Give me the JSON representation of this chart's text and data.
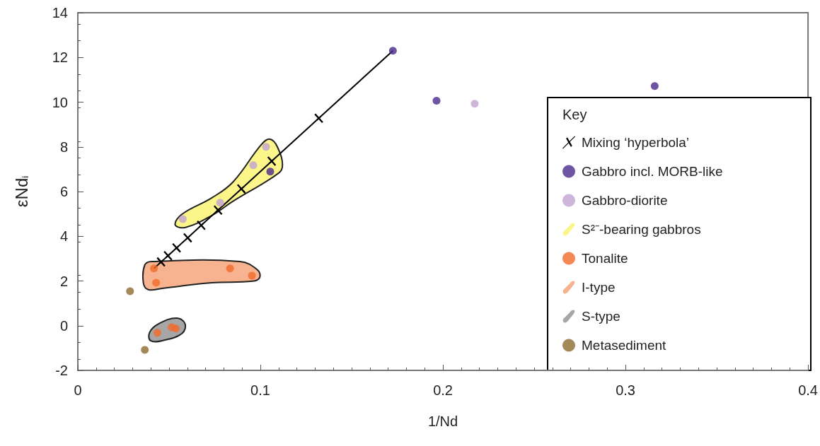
{
  "chart_data": {
    "type": "scatter",
    "xlabel": "1/Nd",
    "ylabel": "εNd$_{i}$",
    "legend_title": "Key",
    "legend": "bottom right",
    "grid": false,
    "xlim": [
      0,
      0.4
    ],
    "xticks": [
      0,
      0.1,
      0.2,
      0.3,
      0.4
    ],
    "ylim": [
      -2,
      14
    ],
    "yticks": [
      -2,
      0,
      2,
      4,
      6,
      8,
      10,
      12,
      14
    ],
    "series": [
      {
        "name": "Mixing ‘hyperbola’",
        "type": "line",
        "color": "#000000",
        "marker": "cross",
        "line_style": "solid",
        "x": [
          0.0417,
          0.0456,
          0.0494,
          0.0541,
          0.0602,
          0.0676,
          0.0768,
          0.0896,
          0.1062,
          0.132,
          0.1726
        ],
        "values": [
          2.56,
          2.85,
          3.13,
          3.48,
          3.93,
          4.49,
          5.17,
          6.12,
          7.36,
          9.28,
          12.3
        ]
      },
      {
        "name": "Gabbro incl. MORB-like",
        "color": "#4a2b8c",
        "marker": "circle",
        "x": [
          0.1726,
          0.1965,
          0.316,
          0.1054
        ],
        "values": [
          12.3,
          10.06,
          10.72,
          6.89
        ]
      },
      {
        "name": "Gabbro-diorite",
        "color": "#c2a3d1",
        "marker": "circle",
        "x": [
          0.2174,
          0.1031,
          0.0961,
          0.078,
          0.0575
        ],
        "values": [
          9.93,
          8.0,
          7.18,
          5.5,
          4.77
        ]
      },
      {
        "name": "S²⁻-bearing gabbros",
        "type": "area",
        "color": "#fbf58a",
        "x": [
          0.0533,
          0.0571,
          0.0734,
          0.0849,
          0.1004,
          0.105,
          0.1093,
          0.112,
          0.1073,
          0.0849,
          0.0734,
          0.0587
        ],
        "values": [
          4.52,
          4.99,
          5.72,
          6.42,
          8.09,
          8.35,
          8.0,
          7.08,
          6.67,
          5.56,
          4.93,
          4.39
        ]
      },
      {
        "name": "Tonalite",
        "color": "#f26a2a",
        "marker": "circle",
        "x": [
          0.0417,
          0.0429,
          0.0834,
          0.0954,
          0.0436,
          0.0514,
          0.0537
        ],
        "values": [
          2.56,
          1.92,
          2.56,
          2.24,
          -0.32,
          -0.07,
          -0.13
        ]
      },
      {
        "name": "I-type",
        "type": "area",
        "color": "#f7b28f",
        "x": [
          0.0367,
          0.0405,
          0.0888,
          0.0985,
          0.0996,
          0.0958,
          0.0734,
          0.0463,
          0.0386,
          0.0359
        ],
        "values": [
          2.72,
          2.87,
          2.87,
          2.49,
          2.15,
          1.99,
          1.92,
          1.67,
          1.61,
          1.92
        ]
      },
      {
        "name": "S-type",
        "type": "area",
        "color": "#a6a6a6",
        "x": [
          0.0394,
          0.0444,
          0.0541,
          0.0587,
          0.0571,
          0.0463,
          0.0398
        ],
        "values": [
          -0.29,
          0.09,
          0.34,
          0.09,
          -0.35,
          -0.67,
          -0.67
        ]
      },
      {
        "name": "Metasediment",
        "color": "#8c6a2e",
        "marker": "circle",
        "x": [
          0.0286,
          0.0367
        ],
        "values": [
          1.54,
          -1.08
        ]
      }
    ]
  }
}
